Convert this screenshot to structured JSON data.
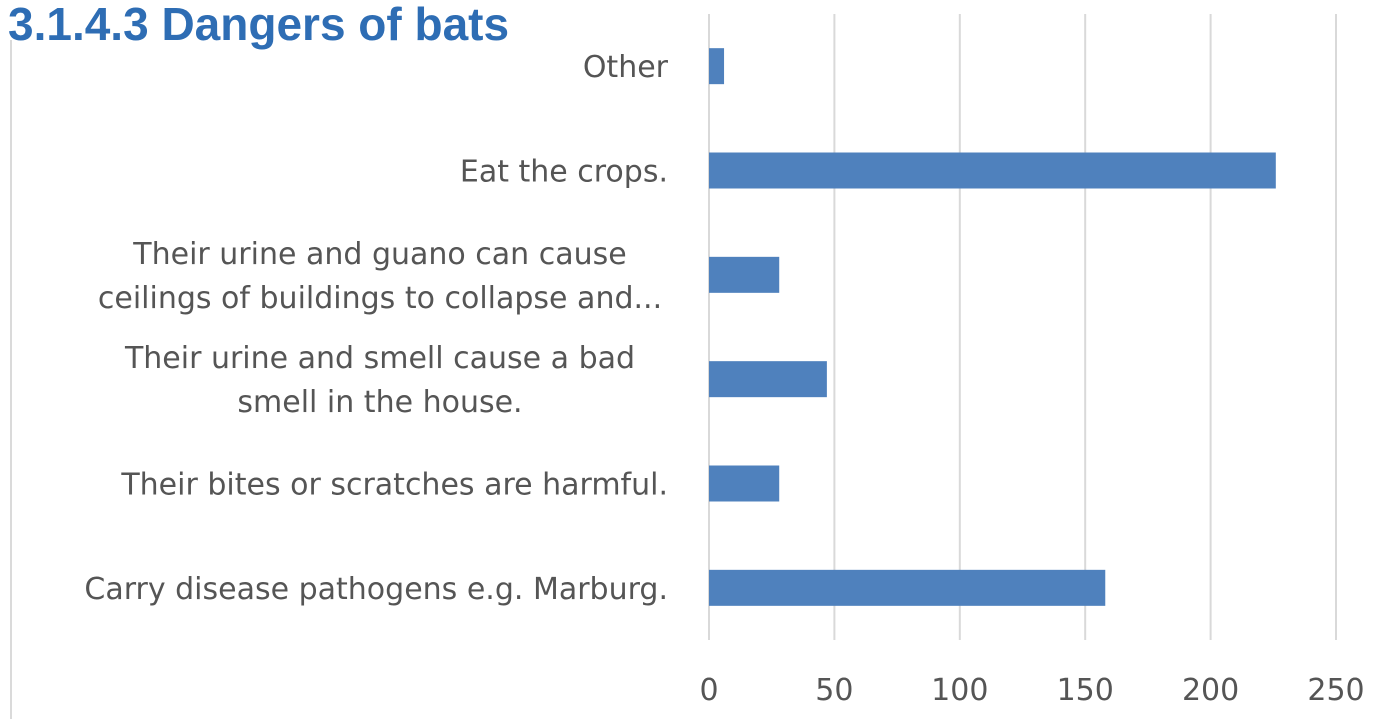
{
  "title": "3.1.4.3 Dangers of bats",
  "colors": {
    "title": "#2e6db4",
    "bar": "#4f81bd",
    "grid": "#d9d9d9",
    "text": "#555555"
  },
  "chart_data": {
    "type": "bar",
    "orientation": "horizontal",
    "title": "",
    "xlabel": "",
    "ylabel": "",
    "categories": [
      [
        "Other"
      ],
      [
        "Eat the crops."
      ],
      [
        "Their urine and guano can cause",
        "ceilings of buildings to collapse and..."
      ],
      [
        "Their urine and smell cause a bad",
        "smell in the house."
      ],
      [
        "Their bites or scratches are harmful."
      ],
      [
        "Carry disease pathogens e.g. Marburg."
      ]
    ],
    "values": [
      6,
      226,
      28,
      47,
      28,
      158
    ],
    "xlim": [
      0,
      250
    ],
    "xticks": [
      0,
      50,
      100,
      150,
      200,
      250
    ],
    "grid": "vertical",
    "legend": "none"
  }
}
